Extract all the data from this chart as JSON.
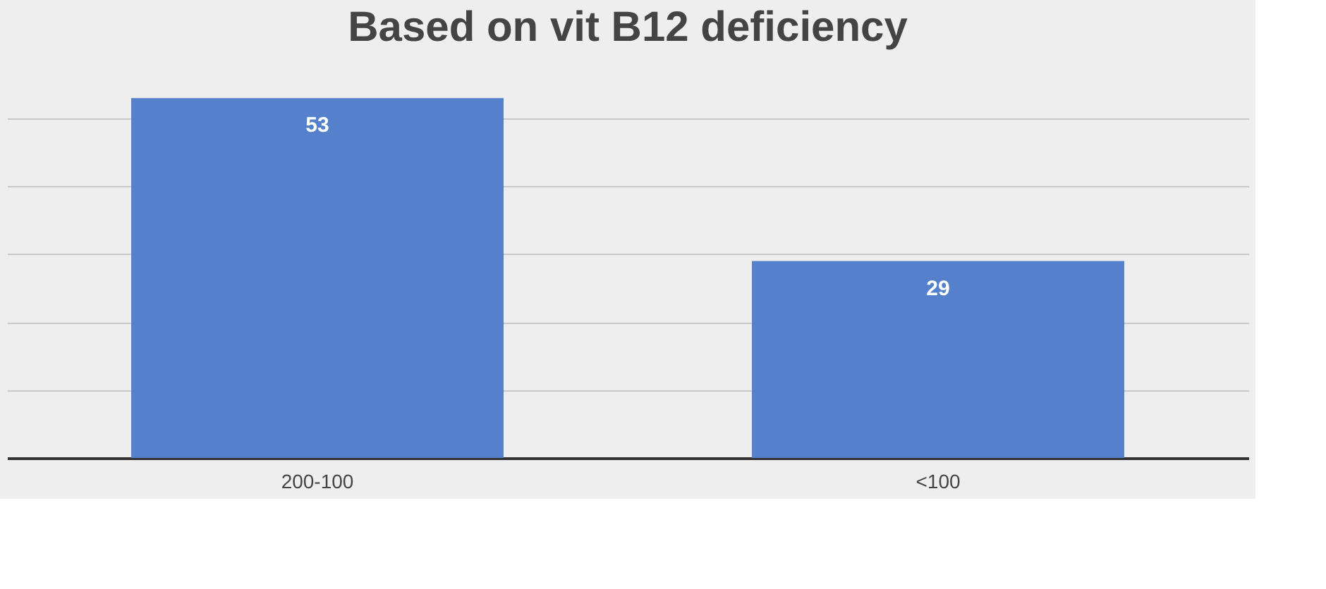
{
  "chart_data": {
    "type": "bar",
    "title": "Based on  vit B12 deficiency",
    "categories": [
      "200-100",
      "<100"
    ],
    "values": [
      53,
      29
    ],
    "color": "#5580cc",
    "yticks": [
      {
        "value": 0,
        "label": null
      },
      {
        "value": 10,
        "label": null
      },
      {
        "value": 20,
        "label": null
      },
      {
        "value": 30,
        "label": null
      },
      {
        "value": 40,
        "label": null
      },
      {
        "value": 50,
        "label": null
      }
    ],
    "tick_labels": "x",
    "grid": "y",
    "data_labels": true
  }
}
